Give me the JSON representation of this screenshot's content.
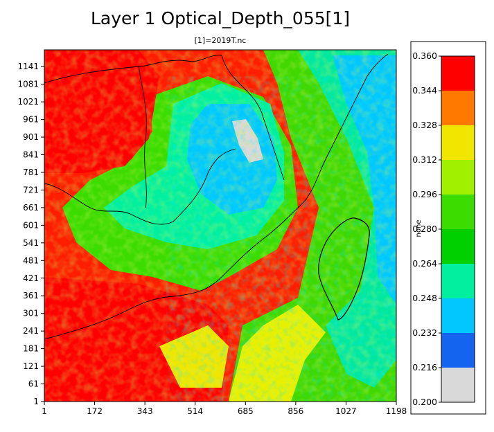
{
  "chart_data": {
    "type": "heatmap",
    "title": "Layer 1 Optical_Depth_055[1]",
    "subtitle": "[1]=2019T.nc",
    "x_ticks": [
      "1",
      "172",
      "343",
      "514",
      "685",
      "856",
      "1027",
      "1198"
    ],
    "y_ticks": [
      "1",
      "61",
      "121",
      "181",
      "241",
      "301",
      "361",
      "421",
      "481",
      "541",
      "601",
      "661",
      "721",
      "781",
      "841",
      "901",
      "961",
      "1021",
      "1081",
      "1141"
    ],
    "x_range": [
      1,
      1198
    ],
    "y_range": [
      1,
      1198
    ],
    "colorbar": {
      "unit_label": "none",
      "levels": [
        "0.200",
        "0.216",
        "0.232",
        "0.248",
        "0.264",
        "0.280",
        "0.296",
        "0.312",
        "0.328",
        "0.344",
        "0.360"
      ],
      "colors": [
        "#d9d9d9",
        "#1464f0",
        "#00c8ff",
        "#00f0a0",
        "#00d000",
        "#3cdc00",
        "#a0f000",
        "#f0e600",
        "#ff7800",
        "#ff0000"
      ]
    }
  }
}
